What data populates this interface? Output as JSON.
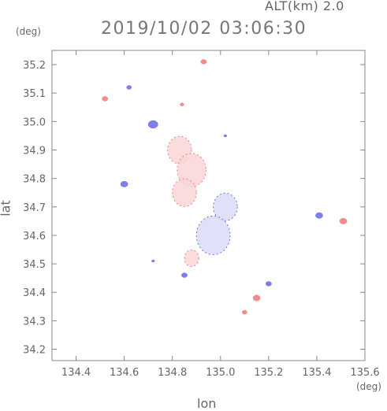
{
  "header": {
    "altitude_label": "ALT(km) 2.0",
    "timestamp": "2019/10/02 03:06:30"
  },
  "axes": {
    "x_label": "lon",
    "y_label": "lat",
    "x_unit": "(deg)",
    "y_unit": "(deg)",
    "x_range": [
      134.3,
      135.6
    ],
    "y_range": [
      34.16,
      35.25
    ],
    "x_ticks": [
      "134.4",
      "134.6",
      "134.8",
      "135.0",
      "135.2",
      "135.4",
      "135.6"
    ],
    "y_ticks": [
      "34.2",
      "34.3",
      "34.4",
      "34.5",
      "34.6",
      "34.7",
      "34.8",
      "34.9",
      "35.0",
      "35.1",
      "35.2"
    ]
  },
  "colors": {
    "frame": "#888888",
    "positive": "#f08080",
    "negative": "#7070e8",
    "positive_faint": "#f9d6d6",
    "negative_faint": "#d8dcf6"
  },
  "echo_regions": [
    {
      "lon": 134.93,
      "lat": 35.21,
      "r": 0.012,
      "sign": "pos"
    },
    {
      "lon": 134.52,
      "lat": 35.08,
      "r": 0.012,
      "sign": "pos"
    },
    {
      "lon": 134.62,
      "lat": 35.12,
      "r": 0.01,
      "sign": "neg"
    },
    {
      "lon": 134.84,
      "lat": 35.06,
      "r": 0.008,
      "sign": "pos"
    },
    {
      "lon": 134.72,
      "lat": 34.99,
      "r": 0.02,
      "sign": "neg"
    },
    {
      "lon": 134.83,
      "lat": 34.9,
      "r": 0.05,
      "sign": "pos"
    },
    {
      "lon": 134.88,
      "lat": 34.83,
      "r": 0.06,
      "sign": "pos"
    },
    {
      "lon": 134.85,
      "lat": 34.75,
      "r": 0.05,
      "sign": "pos"
    },
    {
      "lon": 134.6,
      "lat": 34.78,
      "r": 0.015,
      "sign": "neg"
    },
    {
      "lon": 135.02,
      "lat": 34.7,
      "r": 0.05,
      "sign": "neg"
    },
    {
      "lon": 134.97,
      "lat": 34.6,
      "r": 0.07,
      "sign": "neg"
    },
    {
      "lon": 134.88,
      "lat": 34.52,
      "r": 0.03,
      "sign": "pos"
    },
    {
      "lon": 134.85,
      "lat": 34.46,
      "r": 0.012,
      "sign": "neg"
    },
    {
      "lon": 135.2,
      "lat": 34.43,
      "r": 0.012,
      "sign": "neg"
    },
    {
      "lon": 135.15,
      "lat": 34.38,
      "r": 0.015,
      "sign": "pos"
    },
    {
      "lon": 135.1,
      "lat": 34.33,
      "r": 0.01,
      "sign": "pos"
    },
    {
      "lon": 135.41,
      "lat": 34.67,
      "r": 0.015,
      "sign": "neg"
    },
    {
      "lon": 135.51,
      "lat": 34.65,
      "r": 0.015,
      "sign": "pos"
    },
    {
      "lon": 134.72,
      "lat": 34.51,
      "r": 0.006,
      "sign": "neg"
    },
    {
      "lon": 135.02,
      "lat": 34.95,
      "r": 0.006,
      "sign": "neg"
    }
  ]
}
